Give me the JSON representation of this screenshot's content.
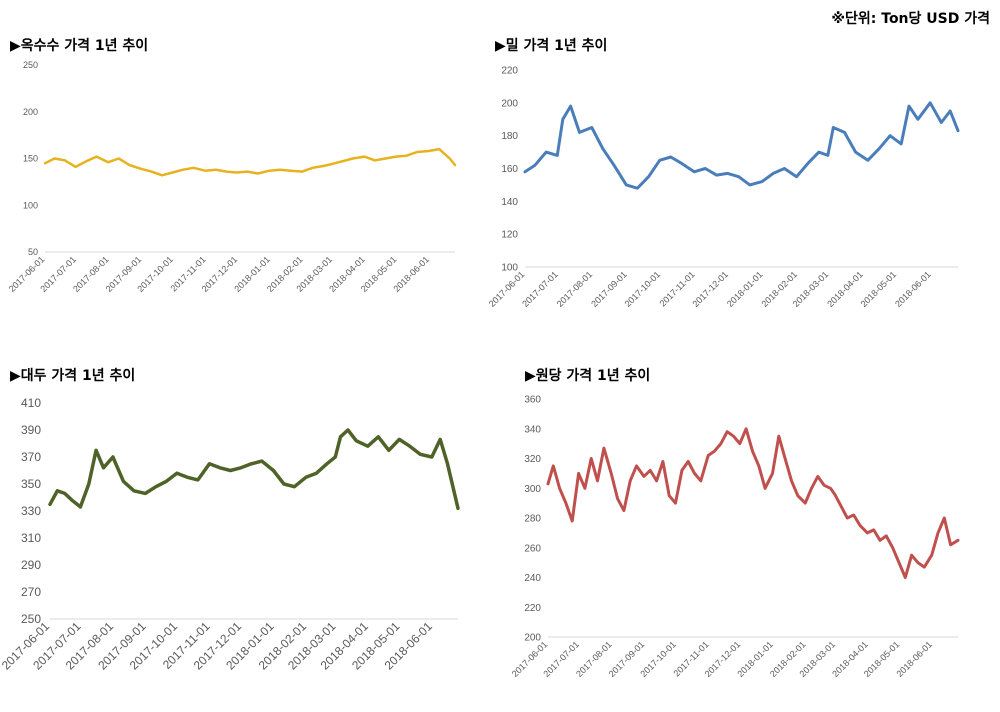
{
  "unit_note": "※단위: Ton당 USD 가격",
  "chart_data": [
    {
      "type": "line",
      "title": "▶옥수수 가격 1년 추이",
      "color": "#E6B31E",
      "ylim": [
        50,
        250
      ],
      "yticks": [
        "50",
        "100",
        "150",
        "200",
        "250"
      ],
      "xticks": [
        "2017-06-01",
        "2017-07-01",
        "2017-08-01",
        "2017-09-01",
        "2017-10-01",
        "2017-11-01",
        "2017-12-01",
        "2018-01-01",
        "2018-02-01",
        "2018-03-01",
        "2018-04-01",
        "2018-05-01",
        "2018-06-01"
      ],
      "x_start": "2017-06-01",
      "x_end": "2018-06-25",
      "series": [
        {
          "x": [
            "2017-06-01",
            "2017-06-10",
            "2017-06-20",
            "2017-06-30",
            "2017-07-10",
            "2017-07-20",
            "2017-07-31",
            "2017-08-10",
            "2017-08-20",
            "2017-08-31",
            "2017-09-10",
            "2017-09-20",
            "2017-09-30",
            "2017-10-10",
            "2017-10-20",
            "2017-10-31",
            "2017-11-10",
            "2017-11-20",
            "2017-11-30",
            "2017-12-10",
            "2017-12-20",
            "2017-12-31",
            "2018-01-10",
            "2018-01-20",
            "2018-01-31",
            "2018-02-10",
            "2018-02-20",
            "2018-02-28",
            "2018-03-10",
            "2018-03-20",
            "2018-03-31",
            "2018-04-10",
            "2018-04-20",
            "2018-04-30",
            "2018-05-10",
            "2018-05-20",
            "2018-05-31",
            "2018-06-10",
            "2018-06-20",
            "2018-06-25"
          ],
          "values": [
            145,
            150,
            148,
            141,
            147,
            152,
            146,
            150,
            143,
            139,
            136,
            132,
            135,
            138,
            140,
            137,
            138,
            136,
            135,
            136,
            134,
            137,
            138,
            137,
            136,
            140,
            142,
            144,
            147,
            150,
            152,
            148,
            150,
            152,
            153,
            157,
            158,
            160,
            150,
            143
          ]
        }
      ]
    },
    {
      "type": "line",
      "title": "▶밀 가격 1년 추이",
      "color": "#4A7EBB",
      "ylim": [
        100,
        220
      ],
      "yticks": [
        "100",
        "120",
        "140",
        "160",
        "180",
        "200",
        "220"
      ],
      "xticks": [
        "2017-06-01",
        "2017-07-01",
        "2017-08-01",
        "2017-09-01",
        "2017-10-01",
        "2017-11-01",
        "2017-12-01",
        "2018-01-01",
        "2018-02-01",
        "2018-03-01",
        "2018-04-01",
        "2018-05-01",
        "2018-06-01"
      ],
      "x_start": "2017-06-01",
      "x_end": "2018-06-25",
      "series": [
        {
          "x": [
            "2017-06-01",
            "2017-06-10",
            "2017-06-20",
            "2017-06-30",
            "2017-07-05",
            "2017-07-12",
            "2017-07-20",
            "2017-07-31",
            "2017-08-10",
            "2017-08-20",
            "2017-08-31",
            "2017-09-10",
            "2017-09-20",
            "2017-09-30",
            "2017-10-10",
            "2017-10-20",
            "2017-10-31",
            "2017-11-10",
            "2017-11-20",
            "2017-11-30",
            "2017-12-10",
            "2017-12-20",
            "2017-12-31",
            "2018-01-10",
            "2018-01-20",
            "2018-01-31",
            "2018-02-10",
            "2018-02-20",
            "2018-02-28",
            "2018-03-05",
            "2018-03-15",
            "2018-03-25",
            "2018-04-05",
            "2018-04-15",
            "2018-04-25",
            "2018-05-05",
            "2018-05-12",
            "2018-05-20",
            "2018-05-31",
            "2018-06-10",
            "2018-06-18",
            "2018-06-25"
          ],
          "values": [
            158,
            162,
            170,
            168,
            190,
            198,
            182,
            185,
            172,
            162,
            150,
            148,
            155,
            165,
            167,
            163,
            158,
            160,
            156,
            157,
            155,
            150,
            152,
            157,
            160,
            155,
            163,
            170,
            168,
            185,
            182,
            170,
            165,
            172,
            180,
            175,
            198,
            190,
            200,
            188,
            195,
            183
          ]
        }
      ]
    },
    {
      "type": "line",
      "title": "▶대두 가격 1년 추이",
      "color": "#4F6228",
      "ylim": [
        250,
        410
      ],
      "yticks": [
        "250",
        "270",
        "290",
        "310",
        "330",
        "350",
        "370",
        "390",
        "410"
      ],
      "xticks": [
        "2017-06-01",
        "2017-07-01",
        "2017-08-01",
        "2017-09-01",
        "2017-10-01",
        "2017-11-01",
        "2017-12-01",
        "2018-01-01",
        "2018-02-01",
        "2018-03-01",
        "2018-04-01",
        "2018-05-01",
        "2018-06-01"
      ],
      "x_start": "2017-06-01",
      "x_end": "2018-06-25",
      "series": [
        {
          "x": [
            "2017-06-01",
            "2017-06-08",
            "2017-06-15",
            "2017-06-22",
            "2017-06-30",
            "2017-07-08",
            "2017-07-15",
            "2017-07-22",
            "2017-07-31",
            "2017-08-10",
            "2017-08-20",
            "2017-08-31",
            "2017-09-10",
            "2017-09-20",
            "2017-09-30",
            "2017-10-10",
            "2017-10-20",
            "2017-10-31",
            "2017-11-10",
            "2017-11-20",
            "2017-11-30",
            "2017-12-10",
            "2017-12-20",
            "2017-12-31",
            "2018-01-10",
            "2018-01-20",
            "2018-01-31",
            "2018-02-10",
            "2018-02-20",
            "2018-02-28",
            "2018-03-05",
            "2018-03-12",
            "2018-03-20",
            "2018-03-31",
            "2018-04-10",
            "2018-04-20",
            "2018-04-30",
            "2018-05-10",
            "2018-05-20",
            "2018-05-31",
            "2018-06-08",
            "2018-06-15",
            "2018-06-25"
          ],
          "values": [
            335,
            345,
            343,
            338,
            333,
            350,
            375,
            362,
            370,
            352,
            345,
            343,
            348,
            352,
            358,
            355,
            353,
            365,
            362,
            360,
            362,
            365,
            367,
            360,
            350,
            348,
            355,
            358,
            365,
            370,
            385,
            390,
            382,
            378,
            385,
            375,
            383,
            378,
            372,
            370,
            383,
            365,
            332
          ]
        }
      ]
    },
    {
      "type": "line",
      "title": "▶원당 가격 1년 추이",
      "color": "#C0504D",
      "ylim": [
        200,
        360
      ],
      "yticks": [
        "200",
        "220",
        "240",
        "260",
        "280",
        "300",
        "320",
        "340",
        "360"
      ],
      "xticks": [
        "2017-06-01",
        "2017-07-01",
        "2017-08-01",
        "2017-09-01",
        "2017-10-01",
        "2017-11-01",
        "2017-12-01",
        "2018-01-01",
        "2018-02-01",
        "2018-03-01",
        "2018-04-01",
        "2018-05-01",
        "2018-06-01"
      ],
      "x_start": "2017-06-01",
      "x_end": "2018-06-25",
      "series": [
        {
          "x": [
            "2017-06-01",
            "2017-06-06",
            "2017-06-12",
            "2017-06-18",
            "2017-06-24",
            "2017-06-30",
            "2017-07-06",
            "2017-07-12",
            "2017-07-18",
            "2017-07-24",
            "2017-07-31",
            "2017-08-06",
            "2017-08-12",
            "2017-08-18",
            "2017-08-24",
            "2017-08-31",
            "2017-09-06",
            "2017-09-12",
            "2017-09-18",
            "2017-09-24",
            "2017-09-30",
            "2017-10-06",
            "2017-10-12",
            "2017-10-18",
            "2017-10-24",
            "2017-10-31",
            "2017-11-06",
            "2017-11-12",
            "2017-11-18",
            "2017-11-24",
            "2017-11-30",
            "2017-12-06",
            "2017-12-12",
            "2017-12-18",
            "2017-12-24",
            "2017-12-31",
            "2018-01-06",
            "2018-01-12",
            "2018-01-18",
            "2018-01-24",
            "2018-01-31",
            "2018-02-06",
            "2018-02-12",
            "2018-02-18",
            "2018-02-24",
            "2018-02-28",
            "2018-03-06",
            "2018-03-12",
            "2018-03-18",
            "2018-03-24",
            "2018-03-31",
            "2018-04-06",
            "2018-04-12",
            "2018-04-18",
            "2018-04-24",
            "2018-04-30",
            "2018-05-06",
            "2018-05-12",
            "2018-05-18",
            "2018-05-24",
            "2018-05-31",
            "2018-06-06",
            "2018-06-12",
            "2018-06-18",
            "2018-06-25"
          ],
          "values": [
            303,
            315,
            300,
            290,
            278,
            310,
            300,
            320,
            305,
            327,
            310,
            293,
            285,
            305,
            315,
            308,
            312,
            305,
            318,
            295,
            290,
            312,
            318,
            310,
            305,
            322,
            325,
            330,
            338,
            335,
            330,
            340,
            325,
            315,
            300,
            310,
            335,
            320,
            305,
            295,
            290,
            300,
            308,
            302,
            300,
            296,
            288,
            280,
            282,
            275,
            270,
            272,
            265,
            268,
            260,
            250,
            240,
            255,
            250,
            247,
            255,
            270,
            280,
            262,
            265
          ]
        }
      ]
    }
  ]
}
